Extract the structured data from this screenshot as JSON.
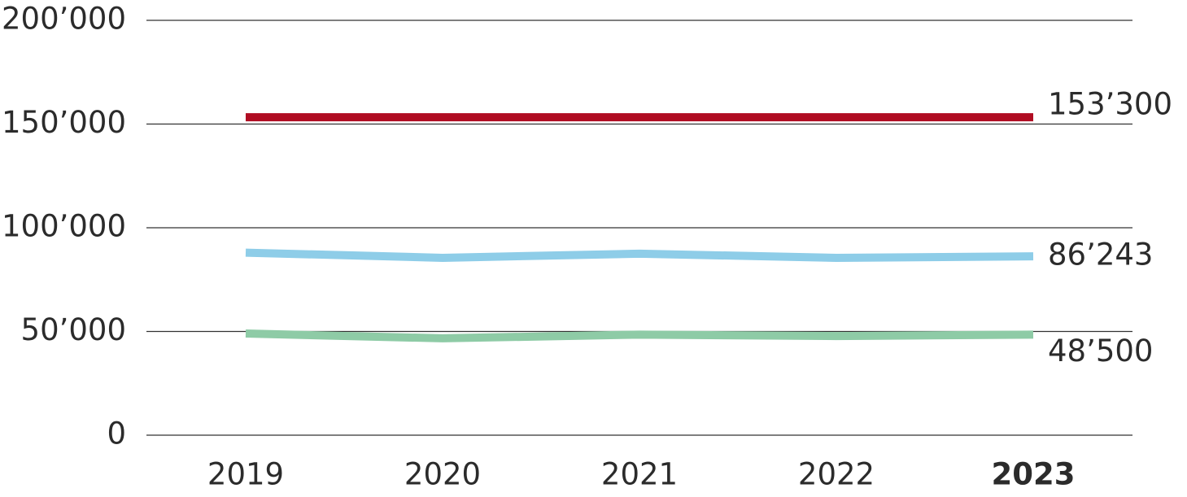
{
  "chart_data": {
    "type": "line",
    "categories": [
      "2019",
      "2020",
      "2021",
      "2022",
      "2023"
    ],
    "series": [
      {
        "color": "#b00c22",
        "values": [
          153300,
          153300,
          153300,
          153300,
          153300
        ],
        "value_labels": [
          null,
          null,
          null,
          null,
          "153’300"
        ]
      },
      {
        "color": "#8ecde8",
        "values": [
          88000,
          85500,
          87500,
          85500,
          86243
        ],
        "value_labels": [
          null,
          null,
          null,
          null,
          "86’243"
        ]
      },
      {
        "color": "#8ecba6",
        "values": [
          49000,
          46700,
          48500,
          47800,
          48500
        ],
        "value_labels": [
          null,
          null,
          null,
          null,
          "48’500"
        ]
      }
    ],
    "ylim": [
      0,
      200000
    ],
    "yticks": [
      0,
      {
        "value": 50000,
        "label": "50’000"
      },
      {
        "value": 100000,
        "label": "100’000"
      },
      {
        "value": 150000,
        "label": "150’000"
      },
      {
        "value": 200000,
        "label": "200’000"
      }
    ],
    "grid": true
  }
}
